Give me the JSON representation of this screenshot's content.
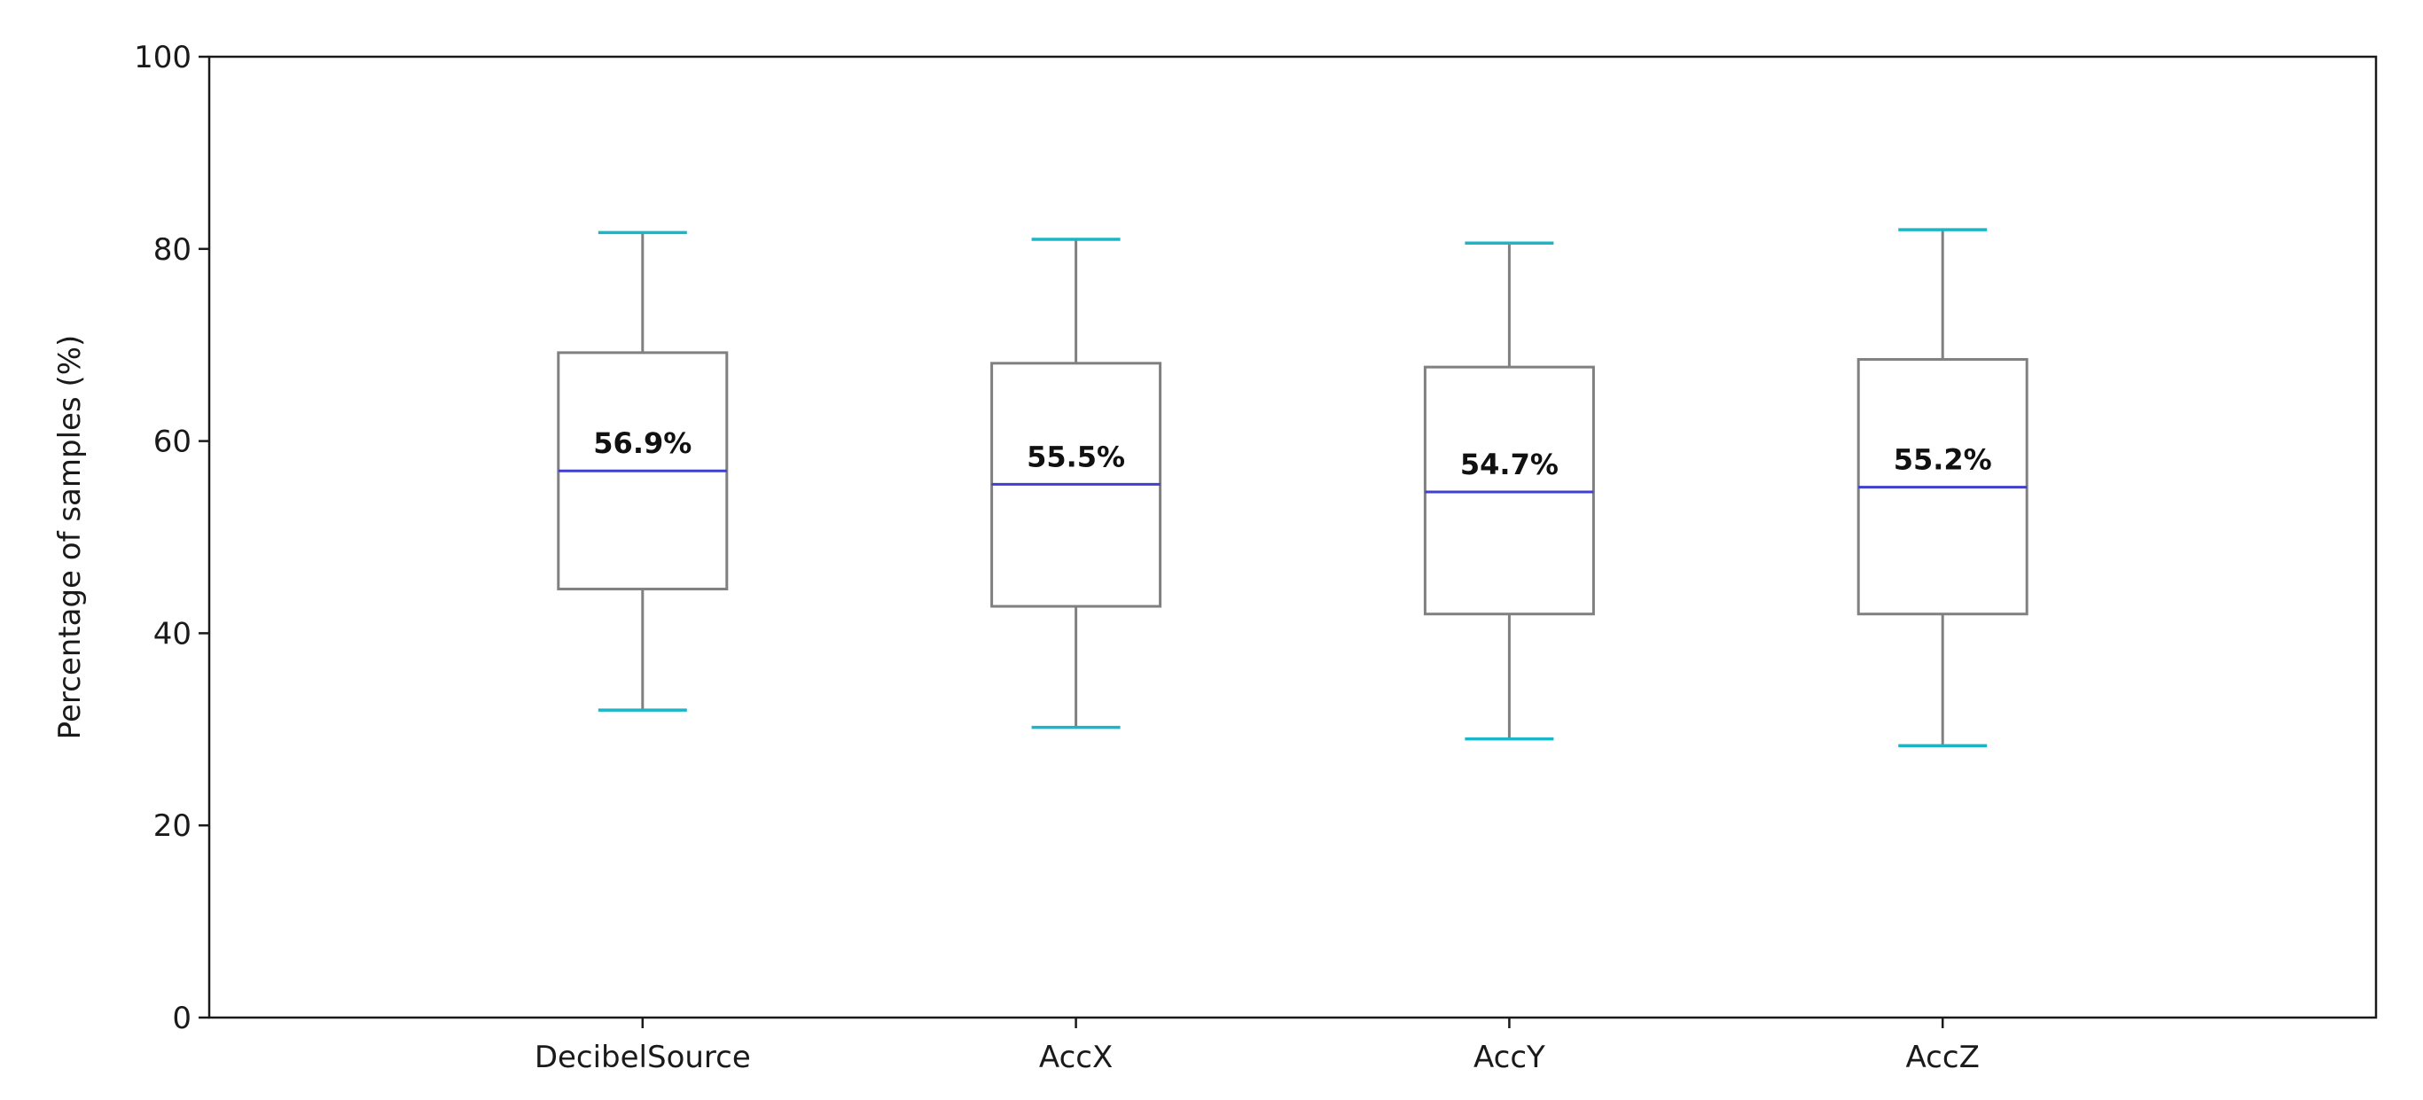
{
  "chart_data": {
    "type": "box",
    "title": "",
    "xlabel": "",
    "ylabel": "Percentage of samples (%)",
    "ylim": [
      0,
      100
    ],
    "yticks": [
      0,
      20,
      40,
      60,
      80,
      100
    ],
    "grid": false,
    "categories": [
      "DecibelSource",
      "AccX",
      "AccY",
      "AccZ"
    ],
    "boxes": [
      {
        "category": "DecibelSource",
        "whisker_low": 32.0,
        "q1": 44.6,
        "median": 56.9,
        "q3": 69.2,
        "whisker_high": 81.7,
        "median_label": "56.9%"
      },
      {
        "category": "AccX",
        "whisker_low": 30.2,
        "q1": 42.8,
        "median": 55.5,
        "q3": 68.1,
        "whisker_high": 81.0,
        "median_label": "55.5%"
      },
      {
        "category": "AccY",
        "whisker_low": 29.0,
        "q1": 42.0,
        "median": 54.7,
        "q3": 67.7,
        "whisker_high": 80.6,
        "median_label": "54.7%"
      },
      {
        "category": "AccZ",
        "whisker_low": 28.3,
        "q1": 42.0,
        "median": 55.2,
        "q3": 68.5,
        "whisker_high": 82.0,
        "median_label": "55.2%"
      }
    ],
    "colors": {
      "box": "#808080",
      "median": "#3f3fd0",
      "caps": "#1ab6c8",
      "axis": "#1a1a1a"
    }
  }
}
